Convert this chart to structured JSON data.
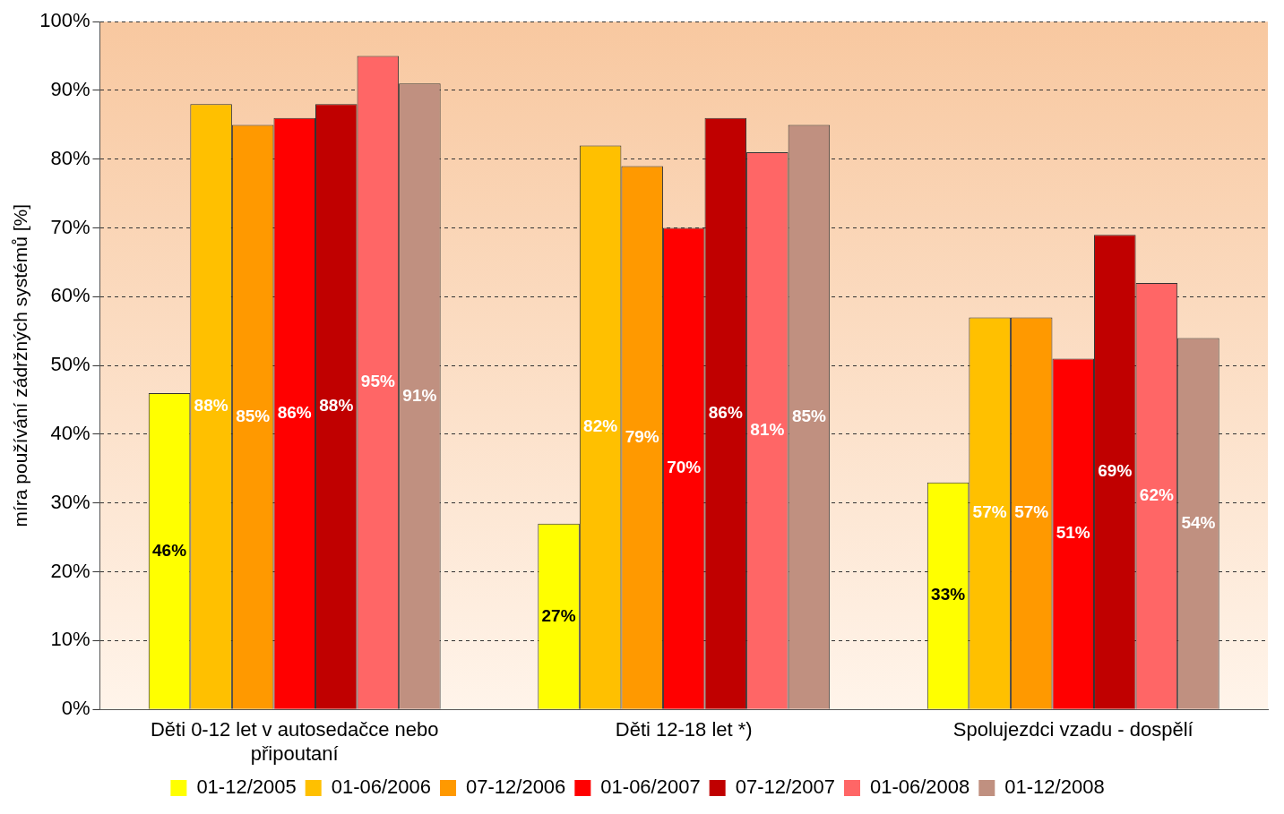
{
  "chart_data": {
    "type": "bar",
    "ylabel": "míra používání zádržných systémů [%]",
    "categories": [
      "Děti 0-12 let v autosedačce nebo připoutaní",
      "Děti 12-18 let *)",
      "Spolujezdci vzadu - dospělí"
    ],
    "series": [
      {
        "name": "01-12/2005",
        "color": "#ffff00",
        "values": [
          46,
          27,
          33
        ],
        "value_labels": [
          "46%",
          "27%",
          "33%"
        ]
      },
      {
        "name": "01-06/2006",
        "color": "#ffc000",
        "values": [
          88,
          82,
          57
        ],
        "value_labels": [
          "88%",
          "82%",
          "57%"
        ]
      },
      {
        "name": "07-12/2006",
        "color": "#ff9900",
        "values": [
          85,
          79,
          57
        ],
        "value_labels": [
          "85%",
          "79%",
          "57%"
        ]
      },
      {
        "name": "01-06/2007",
        "color": "#ff0000",
        "values": [
          86,
          70,
          51
        ],
        "value_labels": [
          "86%",
          "70%",
          "51%"
        ]
      },
      {
        "name": "07-12/2007",
        "color": "#c00000",
        "values": [
          88,
          86,
          69
        ],
        "value_labels": [
          "88%",
          "86%",
          "69%"
        ]
      },
      {
        "name": "01-06/2008",
        "color": "#ff6666",
        "values": [
          95,
          81,
          62
        ],
        "value_labels": [
          "95%",
          "81%",
          "62%"
        ]
      },
      {
        "name": "01-12/2008",
        "color": "#c09080",
        "values": [
          91,
          85,
          54
        ],
        "value_labels": [
          "91%",
          "85%",
          "54%"
        ]
      }
    ],
    "ylim": [
      0,
      100
    ],
    "yticks": [
      {
        "value": 0,
        "label": "0%"
      },
      {
        "value": 10,
        "label": "10%"
      },
      {
        "value": 20,
        "label": "20%"
      },
      {
        "value": 30,
        "label": "30%"
      },
      {
        "value": 40,
        "label": "40%"
      },
      {
        "value": 50,
        "label": "50%"
      },
      {
        "value": 60,
        "label": "60%"
      },
      {
        "value": 70,
        "label": "70%"
      },
      {
        "value": 80,
        "label": "80%"
      },
      {
        "value": 90,
        "label": "90%"
      },
      {
        "value": 100,
        "label": "100%"
      }
    ],
    "grid": "y",
    "legend": "bottom"
  }
}
